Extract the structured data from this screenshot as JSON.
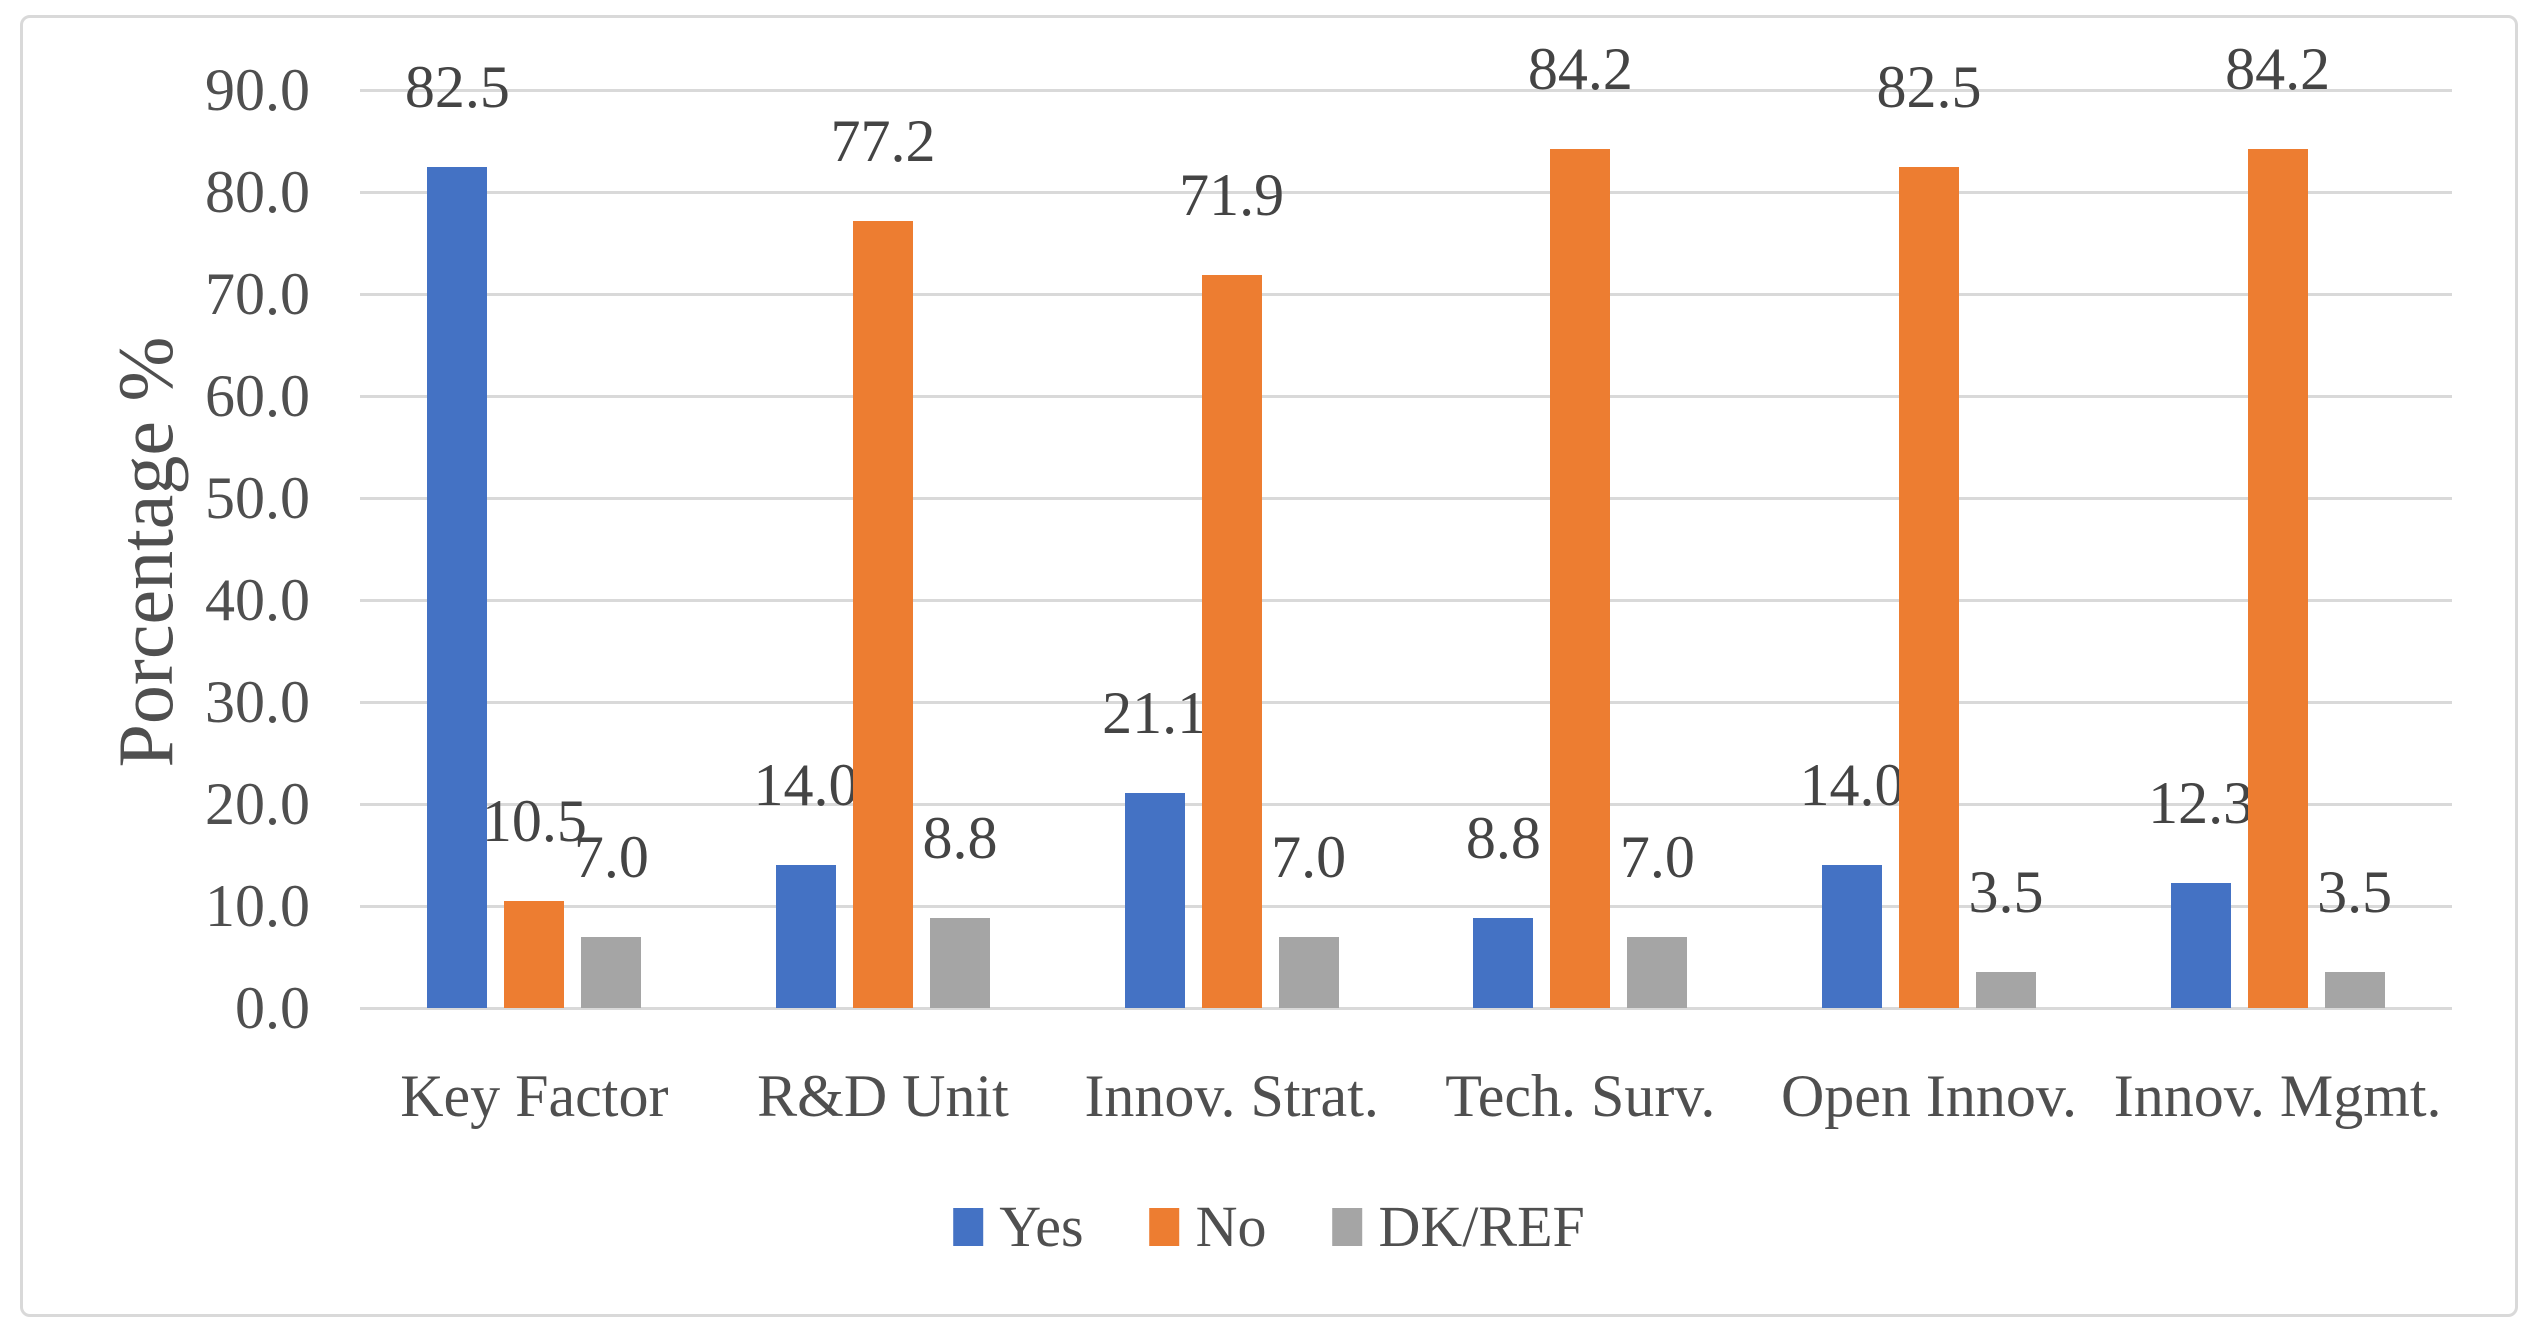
{
  "chart_data": {
    "type": "bar",
    "title": "",
    "categories": [
      "Key Factor",
      "R&D Unit",
      "Innov. Strat.",
      "Tech. Surv.",
      "Open Innov.",
      "Innov. Mgmt."
    ],
    "series": [
      {
        "name": "Yes",
        "color": "#4472C4",
        "values": [
          82.5,
          14.0,
          21.1,
          8.8,
          14.0,
          12.3
        ]
      },
      {
        "name": "No",
        "color": "#ED7D31",
        "values": [
          10.5,
          77.2,
          71.9,
          84.2,
          82.5,
          84.2
        ]
      },
      {
        "name": "DK/REF",
        "color": "#A5A5A5",
        "values": [
          7.0,
          8.8,
          7.0,
          7.0,
          3.5,
          3.5
        ]
      }
    ],
    "xlabel": "",
    "ylabel": "Porcentage %",
    "ylim": [
      0,
      90
    ],
    "y_tick_labels": [
      "0.0",
      "10.0",
      "20.0",
      "30.0",
      "40.0",
      "50.0",
      "60.0",
      "70.0",
      "80.0",
      "90.0"
    ],
    "data_label_decimals": 1,
    "grid": "horizontal",
    "legend_position": "bottom",
    "legend_labels": [
      "Yes",
      "No",
      "DK/REF"
    ]
  },
  "colors": {
    "background": "#FFFFFF",
    "gridline": "#D9D9D9",
    "frame_border": "#D9D9D9",
    "text": "#4f4f4f",
    "series_yes": "#4472C4",
    "series_no": "#ED7D31",
    "series_dkref": "#A5A5A5"
  }
}
